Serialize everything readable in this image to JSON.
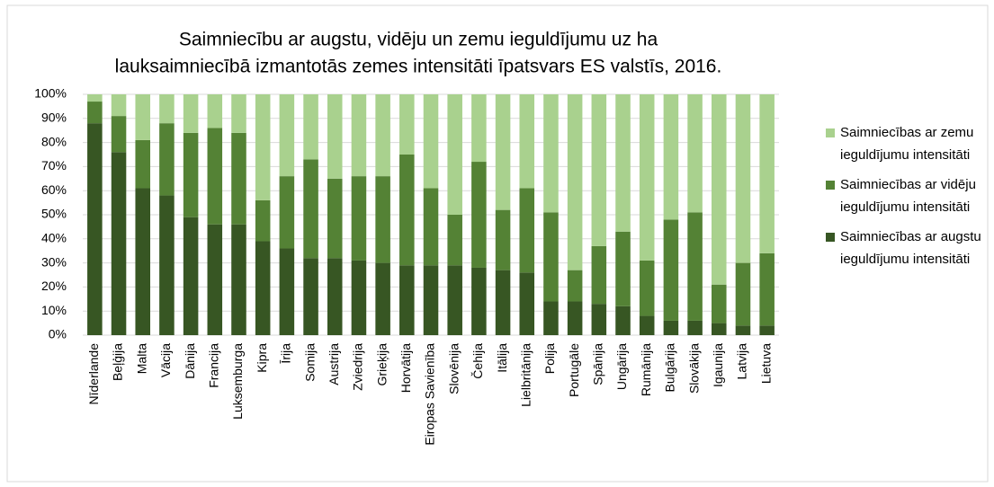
{
  "chart_data": {
    "type": "stacked_bar",
    "title": [
      "Saimniecību ar augstu, vidēju un zemu ieguldījumu uz ha",
      "lauksaimniecībā izmantotās zemes intensitāti īpatsvars ES valstīs, 2016."
    ],
    "categories": [
      "Nīderlande",
      "Beļģija",
      "Malta",
      "Vācija",
      "Dānija",
      "Francija",
      "Luksemburga",
      "Kipra",
      "Īrija",
      "Somija",
      "Austrija",
      "Zviedrija",
      "Grieķija",
      "Horvātija",
      "Eiropas Savienība",
      "Slovēnija",
      "Čehija",
      "Itālija",
      "Lielbritānija",
      "Polija",
      "Portugāle",
      "Spānija",
      "Ungārija",
      "Rumānija",
      "Bulgārija",
      "Slovākija",
      "Igaunija",
      "Latvija",
      "Lietuva"
    ],
    "series": [
      {
        "name": "Saimniecības ar augstu ieguldījumu intensitāti",
        "color": "#375623",
        "values": [
          88,
          76,
          61,
          58,
          49,
          46,
          46,
          39,
          36,
          32,
          32,
          31,
          30,
          29,
          29,
          29,
          28,
          27,
          26,
          14,
          14,
          13,
          12,
          8,
          6,
          6,
          5,
          4,
          4
        ]
      },
      {
        "name": "Saimniecības ar vidēju ieguldījumu intensitāti",
        "color": "#548235",
        "values": [
          9,
          15,
          20,
          30,
          35,
          40,
          38,
          17,
          30,
          41,
          33,
          35,
          36,
          46,
          32,
          21,
          44,
          25,
          35,
          37,
          13,
          24,
          31,
          23,
          42,
          45,
          16,
          26,
          30
        ]
      },
      {
        "name": "Saimniecības ar zemu ieguldījumu intensitāti",
        "color": "#a9d18e",
        "values": [
          3,
          9,
          19,
          12,
          16,
          14,
          16,
          44,
          34,
          27,
          35,
          34,
          34,
          25,
          39,
          50,
          28,
          48,
          39,
          49,
          73,
          63,
          57,
          69,
          52,
          49,
          79,
          70,
          66
        ]
      }
    ],
    "ylim": [
      0,
      100
    ],
    "yticks": [
      {
        "value": 0,
        "label": "0%"
      },
      {
        "value": 10,
        "label": "10%"
      },
      {
        "value": 20,
        "label": "20%"
      },
      {
        "value": 30,
        "label": "30%"
      },
      {
        "value": 40,
        "label": "40%"
      },
      {
        "value": 50,
        "label": "50%"
      },
      {
        "value": 60,
        "label": "60%"
      },
      {
        "value": 70,
        "label": "70%"
      },
      {
        "value": 80,
        "label": "80%"
      },
      {
        "value": 90,
        "label": "90%"
      },
      {
        "value": 100,
        "label": "100%"
      }
    ],
    "grid": true,
    "legend": "right"
  }
}
